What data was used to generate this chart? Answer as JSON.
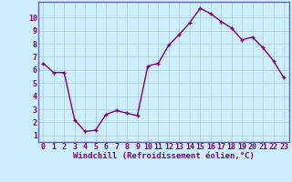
{
  "x": [
    0,
    1,
    2,
    3,
    4,
    5,
    6,
    7,
    8,
    9,
    10,
    11,
    12,
    13,
    14,
    15,
    16,
    17,
    18,
    19,
    20,
    21,
    22,
    23
  ],
  "y": [
    6.5,
    5.8,
    5.8,
    2.2,
    1.3,
    1.4,
    2.6,
    2.9,
    2.7,
    2.5,
    6.3,
    6.5,
    7.9,
    8.7,
    9.6,
    10.7,
    10.3,
    9.7,
    9.2,
    8.3,
    8.5,
    7.7,
    6.7,
    5.4
  ],
  "line_color": "#800080",
  "marker": "+",
  "marker_size": 3,
  "bg_color": "#cceeff",
  "grid_color": "#aacccc",
  "xlim": [
    -0.5,
    23.5
  ],
  "ylim": [
    0.5,
    11.2
  ],
  "xticks": [
    0,
    1,
    2,
    3,
    4,
    5,
    6,
    7,
    8,
    9,
    10,
    11,
    12,
    13,
    14,
    15,
    16,
    17,
    18,
    19,
    20,
    21,
    22,
    23
  ],
  "yticks": [
    1,
    2,
    3,
    4,
    5,
    6,
    7,
    8,
    9,
    10
  ],
  "border_color": "#6666aa",
  "font_color": "#800080",
  "xlabel": "Windchill (Refroidissement éolien,°C)",
  "xlabel_fontsize": 6.5,
  "tick_fontsize": 6,
  "line_width": 1.0,
  "markeredgewidth": 1.0
}
